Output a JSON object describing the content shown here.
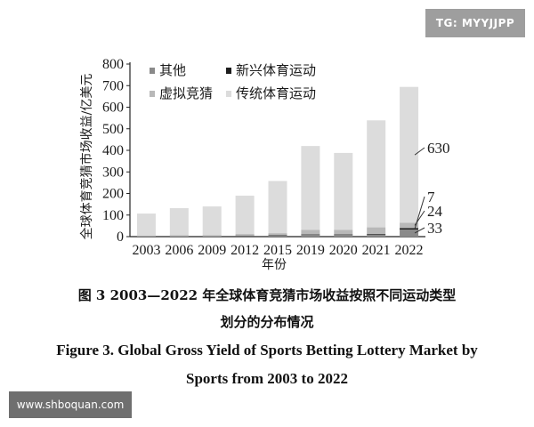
{
  "watermarks": {
    "tg": "TG: MYYJJPP",
    "site": "www.shboquan.com"
  },
  "caption": {
    "cn_line1": "图 3   2003—2022 年全球体育竞猜市场收益按照不同运动类型",
    "cn_line2": "划分的分布情况",
    "en_line1": "Figure 3.    Global Gross Yield of Sports Betting Lottery Market by",
    "en_line2": "Sports from 2003 to 2022"
  },
  "chart_data": {
    "type": "bar",
    "stacked": true,
    "xlabel": "年份",
    "ylabel": "全球体育竞猜市场收益/亿美元",
    "ylim": [
      0,
      800
    ],
    "yticks": [
      0,
      100,
      200,
      300,
      400,
      500,
      600,
      700,
      800
    ],
    "grid": false,
    "legend_position": "top-left",
    "categories": [
      "2003",
      "2006",
      "2009",
      "2012",
      "2015",
      "2019",
      "2020",
      "2021",
      "2022"
    ],
    "series": [
      {
        "name": "其他",
        "color": "#8a8a8a",
        "values": [
          2,
          3,
          3,
          4,
          5,
          8,
          8,
          10,
          33
        ]
      },
      {
        "name": "新兴体育运动",
        "color": "#1e1e1e",
        "values": [
          0,
          0,
          0,
          1,
          1,
          2,
          2,
          3,
          7
        ]
      },
      {
        "name": "虚拟竞猜",
        "color": "#b8b8b8",
        "values": [
          3,
          3,
          4,
          7,
          10,
          22,
          22,
          30,
          24
        ]
      },
      {
        "name": "传统体育运动",
        "color": "#dcdcdc",
        "values": [
          102,
          126,
          133,
          178,
          242,
          388,
          356,
          496,
          630
        ]
      }
    ],
    "annotations": [
      {
        "text": "630",
        "series": "传统体育运动",
        "category": "2022"
      },
      {
        "text": "7",
        "series": "新兴体育运动",
        "category": "2022"
      },
      {
        "text": "24",
        "series": "虚拟竞猜",
        "category": "2022"
      },
      {
        "text": "33",
        "series": "其他",
        "category": "2022"
      }
    ]
  }
}
